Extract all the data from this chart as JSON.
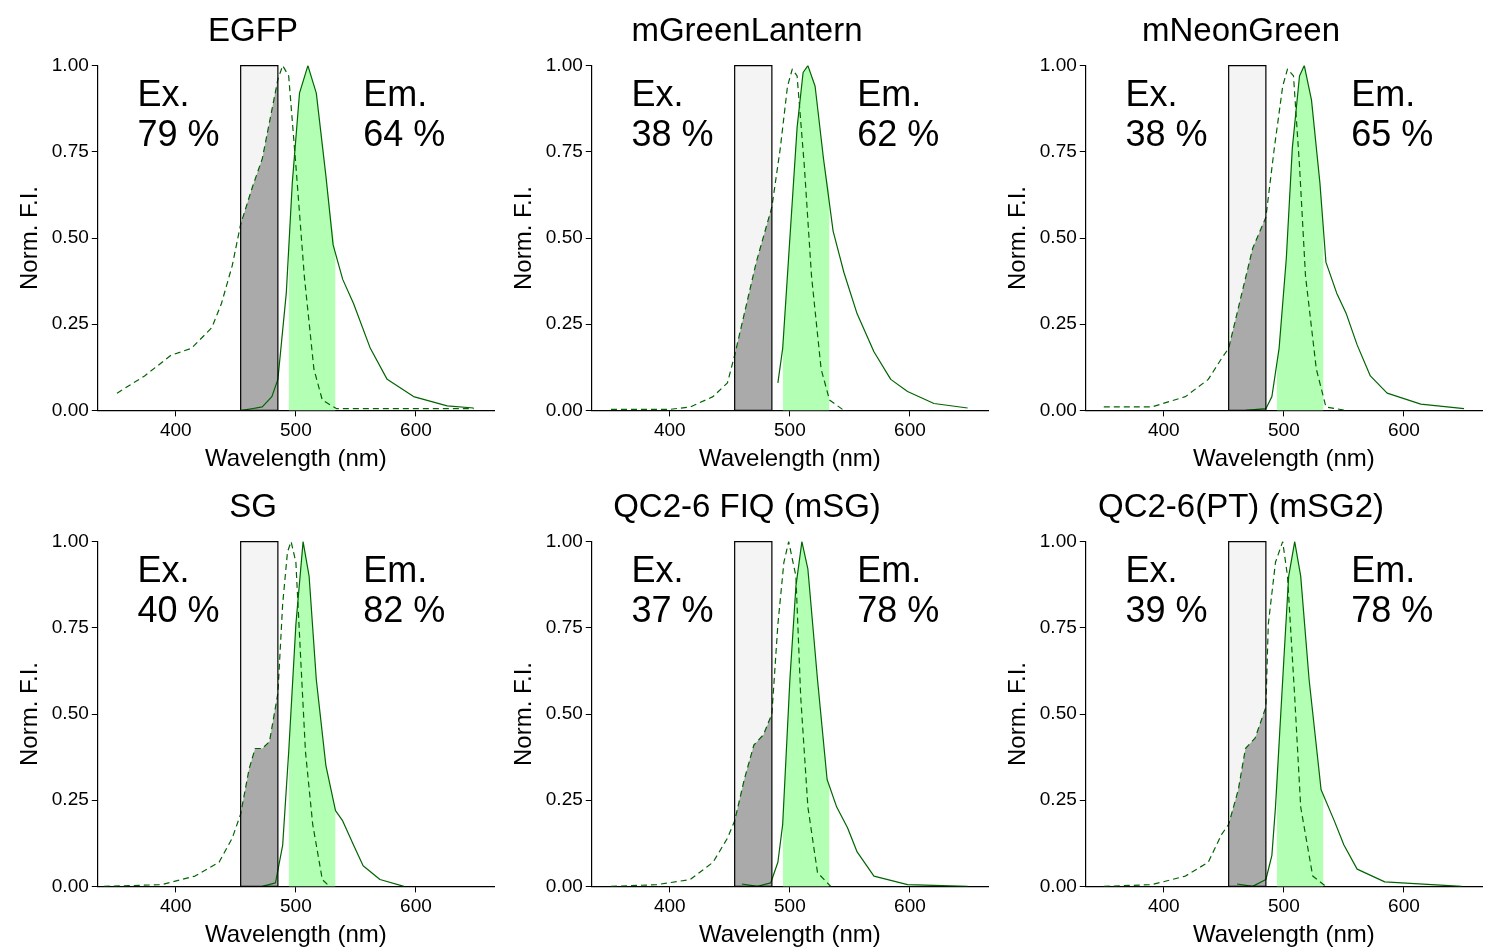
{
  "chart_data": [
    {
      "type": "line",
      "title": "EGFP",
      "xlabel": "Wavelength (nm)",
      "ylabel": "Norm. F.I.",
      "xlim": [
        335,
        665
      ],
      "xticks": [
        400,
        500,
        600
      ],
      "ylim": [
        0,
        1
      ],
      "yticks": [
        {
          "value": 0,
          "label": "0.00"
        },
        {
          "value": 0.25,
          "label": "0.25"
        },
        {
          "value": 0.5,
          "label": "0.50"
        },
        {
          "value": 0.75,
          "label": "0.75"
        },
        {
          "value": 1,
          "label": "1.00"
        }
      ],
      "grid": false,
      "legend": false,
      "annotations": [
        "Ex.\n79 %",
        "Em.\n64 %"
      ],
      "bands": [
        {
          "axis": "x",
          "from": 454,
          "to": 485,
          "color": "#f4f4f4"
        }
      ],
      "series": [
        {
          "type": "area",
          "color": "#aaaaaa",
          "x": [
            454,
            464,
            472,
            485
          ],
          "values": [
            0.54,
            0.65,
            0.73,
            0.96
          ]
        },
        {
          "type": "area",
          "color": "#b3ffb3",
          "x": [
            494,
            497,
            503,
            510,
            517,
            525,
            533
          ],
          "values": [
            0.47,
            0.66,
            0.92,
            1.0,
            0.92,
            0.68,
            0.45
          ]
        },
        {
          "type": "line",
          "line_style": "dashed",
          "color": "#006400",
          "x": [
            351,
            374,
            396,
            413,
            430,
            438,
            447,
            454,
            464,
            472,
            485,
            489,
            494,
            500,
            507,
            515,
            522,
            534,
            648
          ],
          "values": [
            0.05,
            0.1,
            0.16,
            0.18,
            0.24,
            0.31,
            0.42,
            0.54,
            0.65,
            0.73,
            0.96,
            1.0,
            0.97,
            0.71,
            0.39,
            0.12,
            0.03,
            0.005,
            0.005
          ]
        },
        {
          "type": "line",
          "line_style": "solid",
          "color": "#006400",
          "x": [
            455,
            472,
            480,
            485,
            492,
            497,
            503,
            510,
            517,
            525,
            531,
            539,
            548,
            562,
            576,
            598,
            626,
            648
          ],
          "values": [
            0,
            0.01,
            0.04,
            0.09,
            0.34,
            0.66,
            0.92,
            1.0,
            0.92,
            0.68,
            0.48,
            0.38,
            0.31,
            0.18,
            0.09,
            0.04,
            0.013,
            0.007
          ]
        }
      ]
    },
    {
      "type": "line",
      "title": "mGreenLantern",
      "xlabel": "Wavelength (nm)",
      "ylabel": "Norm. F.I.",
      "xlim": [
        335,
        665
      ],
      "xticks": [
        400,
        500,
        600
      ],
      "ylim": [
        0,
        1
      ],
      "yticks": [
        {
          "value": 0,
          "label": "0.00"
        },
        {
          "value": 0.25,
          "label": "0.25"
        },
        {
          "value": 0.5,
          "label": "0.50"
        },
        {
          "value": 0.75,
          "label": "0.75"
        },
        {
          "value": 1,
          "label": "1.00"
        }
      ],
      "grid": false,
      "legend": false,
      "annotations": [
        "Ex.\n38 %",
        "Em.\n62 %"
      ],
      "bands": [
        {
          "axis": "x",
          "from": 454,
          "to": 485,
          "color": "#f4f4f4"
        }
      ],
      "series": [
        {
          "type": "area",
          "color": "#aaaaaa",
          "x": [
            454,
            464,
            472,
            485
          ],
          "values": [
            0.16,
            0.31,
            0.43,
            0.59
          ]
        },
        {
          "type": "area",
          "color": "#b3ffb3",
          "x": [
            494,
            500,
            506,
            511,
            515,
            521,
            528,
            533
          ],
          "values": [
            0.18,
            0.5,
            0.82,
            0.98,
            1.0,
            0.94,
            0.73,
            0.63
          ]
        },
        {
          "type": "line",
          "line_style": "dashed",
          "color": "#006400",
          "x": [
            351,
            400,
            417,
            436,
            448,
            454,
            464,
            472,
            485,
            492,
            498,
            502,
            506,
            512,
            518,
            526,
            533,
            545
          ],
          "values": [
            0.003,
            0.003,
            0.01,
            0.04,
            0.08,
            0.16,
            0.31,
            0.43,
            0.59,
            0.76,
            0.94,
            0.99,
            0.97,
            0.71,
            0.39,
            0.12,
            0.03,
            0
          ]
        },
        {
          "type": "line",
          "line_style": "solid",
          "color": "#006400",
          "x": [
            490,
            494,
            500,
            506,
            511,
            515,
            521,
            528,
            536,
            545,
            556,
            570,
            584,
            598,
            620,
            648
          ],
          "values": [
            0.08,
            0.18,
            0.5,
            0.82,
            0.98,
            1.0,
            0.94,
            0.73,
            0.52,
            0.4,
            0.28,
            0.17,
            0.09,
            0.055,
            0.02,
            0.007
          ]
        }
      ]
    },
    {
      "type": "line",
      "title": "mNeonGreen",
      "xlabel": "Wavelength (nm)",
      "ylabel": "Norm. F.I.",
      "xlim": [
        335,
        665
      ],
      "xticks": [
        400,
        500,
        600
      ],
      "ylim": [
        0,
        1
      ],
      "yticks": [
        {
          "value": 0,
          "label": "0.00"
        },
        {
          "value": 0.25,
          "label": "0.25"
        },
        {
          "value": 0.5,
          "label": "0.50"
        },
        {
          "value": 0.75,
          "label": "0.75"
        },
        {
          "value": 1,
          "label": "1.00"
        }
      ],
      "grid": false,
      "legend": false,
      "annotations": [
        "Ex.\n38 %",
        "Em.\n65 %"
      ],
      "bands": [
        {
          "axis": "x",
          "from": 454,
          "to": 485,
          "color": "#f4f4f4"
        }
      ],
      "series": [
        {
          "type": "area",
          "color": "#aaaaaa",
          "x": [
            454,
            465,
            474,
            485
          ],
          "values": [
            0.18,
            0.34,
            0.47,
            0.56
          ]
        },
        {
          "type": "area",
          "color": "#b3ffb3",
          "x": [
            494,
            496,
            502,
            507,
            513,
            517,
            523,
            530,
            533
          ],
          "values": [
            0.12,
            0.18,
            0.44,
            0.76,
            0.97,
            1.0,
            0.9,
            0.66,
            0.52
          ]
        },
        {
          "type": "line",
          "line_style": "dashed",
          "color": "#006400",
          "x": [
            350,
            390,
            418,
            437,
            448,
            454,
            465,
            474,
            485,
            492,
            499,
            503,
            508,
            513,
            518,
            527,
            535,
            552
          ],
          "values": [
            0.01,
            0.01,
            0.04,
            0.09,
            0.15,
            0.18,
            0.34,
            0.47,
            0.56,
            0.76,
            0.94,
            0.99,
            0.97,
            0.71,
            0.39,
            0.12,
            0.01,
            0
          ]
        },
        {
          "type": "line",
          "line_style": "solid",
          "color": "#006400",
          "x": [
            468,
            485,
            490,
            496,
            502,
            507,
            513,
            517,
            523,
            530,
            535,
            544,
            552,
            561,
            572,
            586,
            614,
            650
          ],
          "values": [
            0,
            0.005,
            0.04,
            0.18,
            0.44,
            0.76,
            0.97,
            1.0,
            0.9,
            0.66,
            0.43,
            0.34,
            0.28,
            0.19,
            0.1,
            0.05,
            0.018,
            0.005
          ]
        }
      ]
    },
    {
      "type": "line",
      "title": "SG",
      "xlabel": "Wavelength (nm)",
      "ylabel": "Norm. F.I.",
      "xlim": [
        335,
        665
      ],
      "xticks": [
        400,
        500,
        600
      ],
      "ylim": [
        0,
        1
      ],
      "yticks": [
        {
          "value": 0,
          "label": "0.00"
        },
        {
          "value": 0.25,
          "label": "0.25"
        },
        {
          "value": 0.5,
          "label": "0.50"
        },
        {
          "value": 0.75,
          "label": "0.75"
        },
        {
          "value": 1,
          "label": "1.00"
        }
      ],
      "grid": false,
      "legend": false,
      "annotations": [
        "Ex.\n40 %",
        "Em.\n82 %"
      ],
      "bands": [
        {
          "axis": "x",
          "from": 454,
          "to": 485,
          "color": "#f4f4f4"
        }
      ],
      "series": [
        {
          "type": "area",
          "color": "#aaaaaa",
          "x": [
            454,
            461,
            466,
            472,
            478,
            485
          ],
          "values": [
            0.21,
            0.34,
            0.4,
            0.4,
            0.42,
            0.56
          ]
        },
        {
          "type": "area",
          "color": "#b3ffb3",
          "x": [
            494,
            500,
            506,
            511,
            517,
            525,
            533
          ],
          "values": [
            0.39,
            0.76,
            1.0,
            0.9,
            0.6,
            0.35,
            0.22
          ]
        },
        {
          "type": "line",
          "line_style": "dashed",
          "color": "#006400",
          "x": [
            340,
            388,
            416,
            436,
            447,
            454,
            461,
            466,
            472,
            478,
            485,
            489,
            493,
            496,
            500,
            504,
            508,
            514,
            522,
            528
          ],
          "values": [
            0,
            0.005,
            0.03,
            0.07,
            0.14,
            0.21,
            0.34,
            0.4,
            0.4,
            0.42,
            0.56,
            0.82,
            0.97,
            1.0,
            0.94,
            0.66,
            0.39,
            0.18,
            0.02,
            0
          ]
        },
        {
          "type": "line",
          "line_style": "solid",
          "color": "#006400",
          "x": [
            472,
            483,
            489,
            494,
            500,
            506,
            511,
            517,
            525,
            533,
            539,
            548,
            556,
            570,
            590
          ],
          "values": [
            0,
            0.01,
            0.12,
            0.39,
            0.76,
            1.0,
            0.9,
            0.6,
            0.35,
            0.22,
            0.19,
            0.12,
            0.06,
            0.02,
            0
          ]
        }
      ]
    },
    {
      "type": "line",
      "title": "QC2-6 FIQ (mSG)",
      "xlabel": "Wavelength (nm)",
      "ylabel": "Norm. F.I.",
      "xlim": [
        335,
        665
      ],
      "xticks": [
        400,
        500,
        600
      ],
      "ylim": [
        0,
        1
      ],
      "yticks": [
        {
          "value": 0,
          "label": "0.00"
        },
        {
          "value": 0.25,
          "label": "0.25"
        },
        {
          "value": 0.5,
          "label": "0.50"
        },
        {
          "value": 0.75,
          "label": "0.75"
        },
        {
          "value": 1,
          "label": "1.00"
        }
      ],
      "grid": false,
      "legend": false,
      "annotations": [
        "Ex.\n37 %",
        "Em.\n78 %"
      ],
      "bands": [
        {
          "axis": "x",
          "from": 454,
          "to": 485,
          "color": "#f4f4f4"
        }
      ],
      "series": [
        {
          "type": "area",
          "color": "#aaaaaa",
          "x": [
            454,
            462,
            470,
            478,
            485
          ],
          "values": [
            0.19,
            0.31,
            0.41,
            0.44,
            0.5
          ]
        },
        {
          "type": "area",
          "color": "#b3ffb3",
          "x": [
            494,
            500,
            505,
            510,
            515,
            523,
            531,
            533
          ],
          "values": [
            0.18,
            0.6,
            0.87,
            1.0,
            0.92,
            0.6,
            0.31,
            0.29
          ]
        },
        {
          "type": "line",
          "line_style": "dashed",
          "color": "#006400",
          "x": [
            351,
            389,
            417,
            436,
            448,
            454,
            462,
            470,
            478,
            485,
            490,
            495,
            499,
            505,
            509,
            515,
            523,
            534
          ],
          "values": [
            0,
            0.005,
            0.02,
            0.07,
            0.14,
            0.19,
            0.31,
            0.41,
            0.44,
            0.5,
            0.76,
            0.94,
            1.0,
            0.9,
            0.55,
            0.23,
            0.04,
            0
          ]
        },
        {
          "type": "line",
          "line_style": "solid",
          "color": "#006400",
          "x": [
            460,
            473,
            484,
            490,
            494,
            500,
            505,
            510,
            515,
            523,
            531,
            539,
            548,
            556,
            570,
            598,
            648
          ],
          "values": [
            0.007,
            0,
            0.01,
            0.07,
            0.18,
            0.6,
            0.87,
            1.0,
            0.92,
            0.6,
            0.31,
            0.23,
            0.17,
            0.1,
            0.03,
            0.005,
            0
          ]
        }
      ]
    },
    {
      "type": "line",
      "title": "QC2-6(PT) (mSG2)",
      "xlabel": "Wavelength (nm)",
      "ylabel": "Norm. F.I.",
      "xlim": [
        335,
        665
      ],
      "xticks": [
        400,
        500,
        600
      ],
      "ylim": [
        0,
        1
      ],
      "yticks": [
        {
          "value": 0,
          "label": "0.00"
        },
        {
          "value": 0.25,
          "label": "0.25"
        },
        {
          "value": 0.5,
          "label": "0.50"
        },
        {
          "value": 0.75,
          "label": "0.75"
        },
        {
          "value": 1,
          "label": "1.00"
        }
      ],
      "grid": false,
      "legend": false,
      "annotations": [
        "Ex.\n39 %",
        "Em.\n78 %"
      ],
      "bands": [
        {
          "axis": "x",
          "from": 454,
          "to": 485,
          "color": "#f4f4f4"
        }
      ],
      "series": [
        {
          "type": "area",
          "color": "#aaaaaa",
          "x": [
            454,
            462,
            468,
            476,
            485
          ],
          "values": [
            0.18,
            0.28,
            0.4,
            0.43,
            0.52
          ]
        },
        {
          "type": "area",
          "color": "#b3ffb3",
          "x": [
            494,
            500,
            504,
            509,
            514,
            521,
            531,
            533
          ],
          "values": [
            0.3,
            0.66,
            0.9,
            1.0,
            0.9,
            0.6,
            0.28,
            0.26
          ]
        },
        {
          "type": "line",
          "line_style": "dashed",
          "color": "#006400",
          "x": [
            350,
            390,
            418,
            437,
            448,
            454,
            462,
            468,
            476,
            485,
            487,
            493,
            499,
            503,
            509,
            514,
            524,
            535
          ],
          "values": [
            0,
            0.005,
            0.03,
            0.07,
            0.15,
            0.18,
            0.28,
            0.4,
            0.43,
            0.52,
            0.76,
            0.94,
            1.0,
            0.9,
            0.55,
            0.23,
            0.03,
            0
          ]
        },
        {
          "type": "line",
          "line_style": "solid",
          "color": "#006400",
          "x": [
            461,
            474,
            485,
            490,
            493,
            500,
            504,
            509,
            514,
            521,
            531,
            542,
            550,
            561,
            584,
            648
          ],
          "values": [
            0.007,
            0,
            0.02,
            0.09,
            0.23,
            0.66,
            0.9,
            1.0,
            0.9,
            0.6,
            0.28,
            0.19,
            0.12,
            0.05,
            0.013,
            0
          ]
        }
      ]
    }
  ]
}
